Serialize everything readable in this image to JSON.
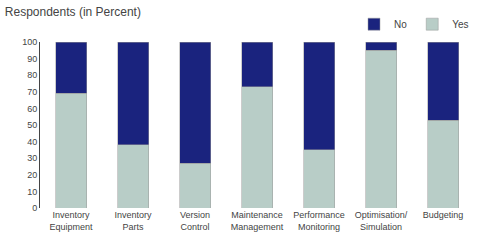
{
  "chart_data": {
    "type": "bar",
    "title": "Respondents (in Percent)",
    "categories": [
      "Inventory\nEquipment",
      "Inventory\nParts",
      "Version\nControl",
      "Maintenance\nManagement",
      "Performance\nMonitoring",
      "Optimisation/\nSimulation",
      "Budgeting"
    ],
    "series": [
      {
        "name": "Yes",
        "color": "#b8cdc7",
        "values": [
          69,
          38,
          27,
          73,
          35,
          95,
          53
        ]
      },
      {
        "name": "No",
        "color": "#1a237e",
        "values": [
          31,
          62,
          73,
          27,
          65,
          5,
          47
        ]
      }
    ],
    "stacked": true,
    "ylim": [
      0,
      100
    ],
    "yticks": [
      0,
      10,
      20,
      30,
      40,
      50,
      60,
      70,
      80,
      90,
      100
    ],
    "grid": false,
    "legend": "upper right"
  }
}
